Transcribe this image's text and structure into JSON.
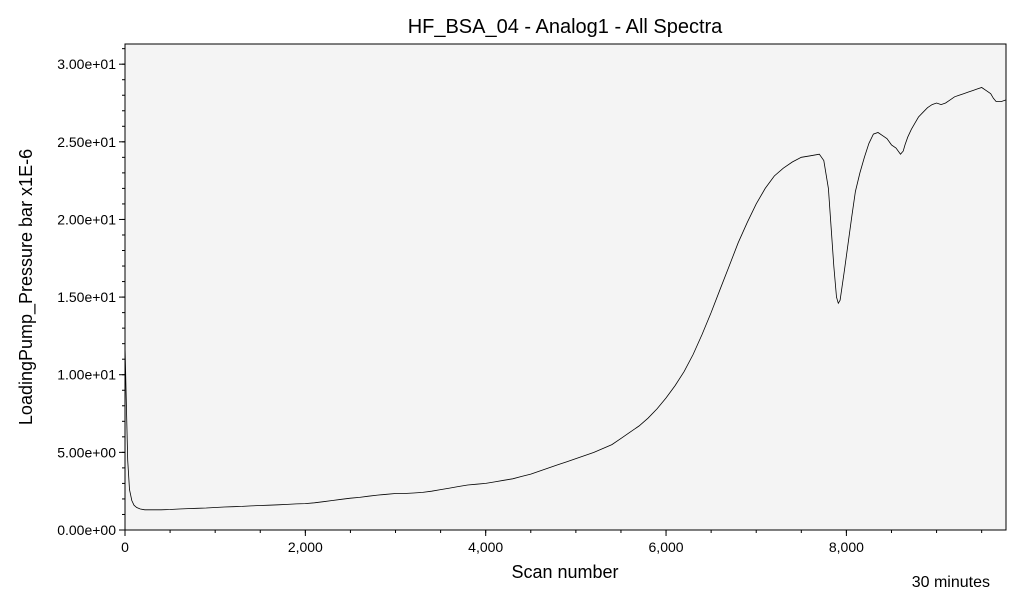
{
  "chart_data": {
    "type": "line",
    "title": "HF_BSA_04 - Analog1 - All Spectra",
    "xlabel": "Scan number",
    "ylabel": "LoadingPump_Pressure bar x1E-6",
    "footer_text": "30 minutes",
    "xlim": [
      0,
      9770
    ],
    "ylim": [
      0,
      31.3
    ],
    "x_ticks": [
      0,
      2000,
      4000,
      6000,
      8000
    ],
    "x_tick_labels": [
      "0",
      "2,000",
      "4,000",
      "6,000",
      "8,000"
    ],
    "y_ticks": [
      0,
      5,
      10,
      15,
      20,
      25,
      30
    ],
    "y_tick_labels": [
      "0.00e+00",
      "5.00e+00",
      "1.00e+01",
      "1.50e+01",
      "2.00e+01",
      "2.50e+01",
      "3.00e+01"
    ],
    "grid": false,
    "colors": {
      "plot_background": "#f4f4f4",
      "line": "#000000"
    },
    "series": [
      {
        "x": [
          0,
          15,
          30,
          50,
          75,
          100,
          130,
          170,
          220,
          300,
          400,
          500,
          600,
          700,
          800,
          900,
          1000,
          1100,
          1200,
          1300,
          1400,
          1500,
          1600,
          1700,
          1800,
          1900,
          2000,
          2100,
          2200,
          2300,
          2400,
          2500,
          2600,
          2700,
          2800,
          2900,
          3000,
          3100,
          3200,
          3300,
          3400,
          3500,
          3600,
          3700,
          3800,
          3900,
          4000,
          4100,
          4200,
          4300,
          4400,
          4500,
          4600,
          4700,
          4800,
          4900,
          5000,
          5100,
          5200,
          5300,
          5400,
          5500,
          5600,
          5700,
          5800,
          5900,
          6000,
          6100,
          6200,
          6300,
          6400,
          6500,
          6600,
          6700,
          6800,
          6900,
          7000,
          7100,
          7200,
          7300,
          7400,
          7500,
          7600,
          7700,
          7750,
          7800,
          7830,
          7860,
          7890,
          7910,
          7930,
          7950,
          7980,
          8020,
          8060,
          8100,
          8150,
          8200,
          8250,
          8300,
          8350,
          8400,
          8450,
          8500,
          8550,
          8600,
          8630,
          8650,
          8680,
          8720,
          8760,
          8800,
          8850,
          8900,
          8950,
          9000,
          9050,
          9100,
          9150,
          9200,
          9250,
          9300,
          9350,
          9400,
          9450,
          9500,
          9550,
          9600,
          9630,
          9660,
          9690,
          9720,
          9770
        ],
        "y": [
          11.9,
          8.0,
          4.5,
          2.6,
          1.9,
          1.6,
          1.45,
          1.35,
          1.3,
          1.3,
          1.3,
          1.32,
          1.35,
          1.38,
          1.4,
          1.42,
          1.45,
          1.48,
          1.5,
          1.52,
          1.55,
          1.58,
          1.6,
          1.62,
          1.65,
          1.68,
          1.7,
          1.75,
          1.82,
          1.9,
          1.98,
          2.05,
          2.1,
          2.18,
          2.25,
          2.3,
          2.35,
          2.35,
          2.38,
          2.42,
          2.5,
          2.6,
          2.7,
          2.8,
          2.9,
          2.95,
          3.0,
          3.1,
          3.2,
          3.3,
          3.45,
          3.6,
          3.8,
          4.0,
          4.2,
          4.4,
          4.6,
          4.8,
          5.0,
          5.25,
          5.5,
          5.9,
          6.3,
          6.7,
          7.2,
          7.8,
          8.5,
          9.3,
          10.2,
          11.3,
          12.6,
          14.0,
          15.5,
          17.0,
          18.5,
          19.8,
          21.0,
          22.0,
          22.8,
          23.3,
          23.7,
          24.0,
          24.1,
          24.2,
          23.8,
          22.0,
          19.5,
          17.0,
          15.0,
          14.6,
          14.8,
          15.6,
          16.8,
          18.5,
          20.2,
          21.8,
          23.0,
          24.0,
          24.9,
          25.5,
          25.6,
          25.4,
          25.2,
          24.8,
          24.6,
          24.2,
          24.4,
          24.8,
          25.3,
          25.8,
          26.2,
          26.6,
          26.9,
          27.2,
          27.4,
          27.5,
          27.4,
          27.5,
          27.7,
          27.9,
          28.0,
          28.1,
          28.2,
          28.3,
          28.4,
          28.5,
          28.3,
          28.1,
          27.8,
          27.6,
          27.6,
          27.6,
          27.7
        ]
      }
    ]
  }
}
